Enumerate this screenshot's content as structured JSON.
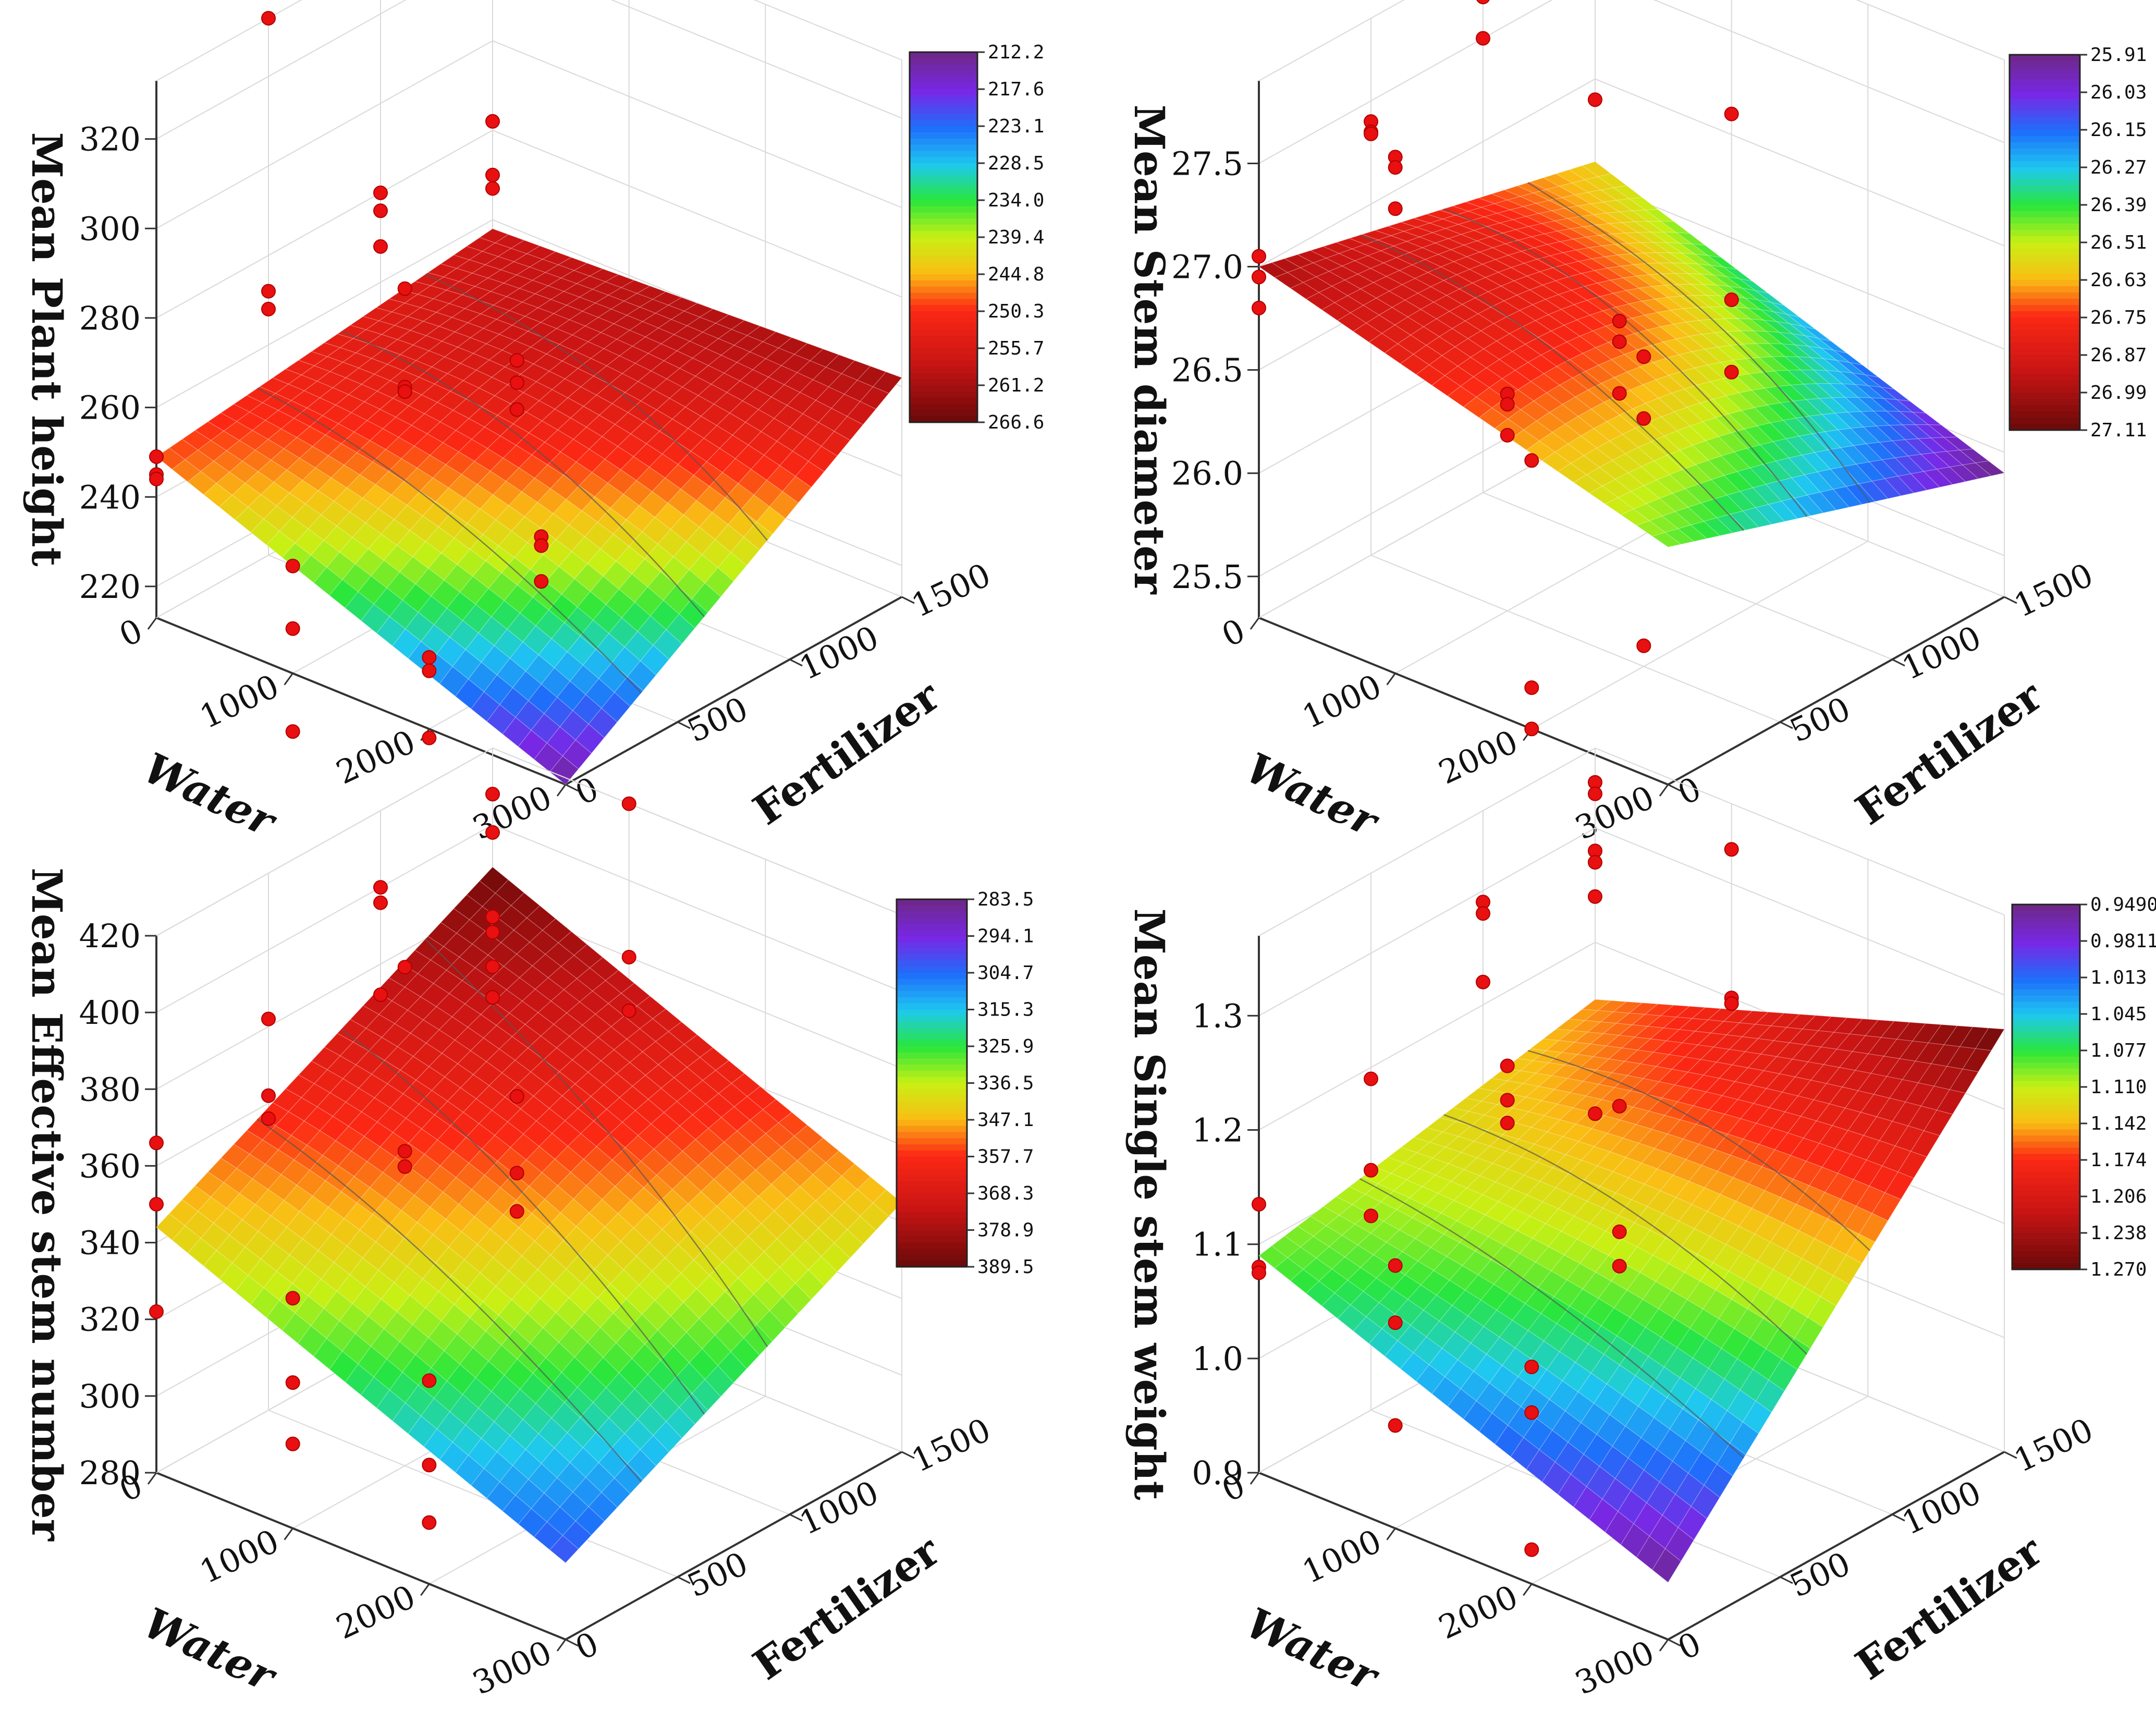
{
  "chart_data": [
    {
      "type": "surface3d",
      "panel": "top-left",
      "zlabel": "Mean Plant height",
      "xlabel": "Water",
      "ylabel": "Fertilizer",
      "x_ticks": [
        "0",
        "1000",
        "2000",
        "3000"
      ],
      "y_ticks": [
        "0",
        "500",
        "1000",
        "1500"
      ],
      "z_ticks": [
        "220",
        "240",
        "260",
        "280",
        "300",
        "320"
      ],
      "xlim": [
        0,
        3000
      ],
      "ylim": [
        0,
        1500
      ],
      "zlim": [
        213,
        333
      ],
      "surface": {
        "corners": {
          "x0y0": 249,
          "x1y0": 213,
          "x0y1": 258,
          "x1y1": 262
        },
        "center": 252
      },
      "colorbar": {
        "labels": [
          "212.2",
          "217.6",
          "223.1",
          "228.5",
          "234.0",
          "239.4",
          "244.8",
          "250.3",
          "255.7",
          "261.2",
          "266.6"
        ],
        "min": 212.2,
        "max": 266.6
      },
      "points": [
        {
          "x": 0,
          "y": 0,
          "z": 249
        },
        {
          "x": 0,
          "y": 0,
          "z": 245
        },
        {
          "x": 0,
          "y": 0,
          "z": 244
        },
        {
          "x": 1000,
          "y": 0,
          "z": 237
        },
        {
          "x": 1000,
          "y": 0,
          "z": 223
        },
        {
          "x": 1000,
          "y": 0,
          "z": 200
        },
        {
          "x": 2000,
          "y": 0,
          "z": 229
        },
        {
          "x": 2000,
          "y": 0,
          "z": 226
        },
        {
          "x": 2000,
          "y": 0,
          "z": 211
        },
        {
          "x": 0,
          "y": 500,
          "z": 272
        },
        {
          "x": 0,
          "y": 500,
          "z": 268
        },
        {
          "x": 0,
          "y": 500,
          "z": 333
        },
        {
          "x": 1000,
          "y": 500,
          "z": 285
        },
        {
          "x": 1000,
          "y": 500,
          "z": 263
        },
        {
          "x": 1000,
          "y": 500,
          "z": 262
        },
        {
          "x": 2000,
          "y": 500,
          "z": 242
        },
        {
          "x": 2000,
          "y": 500,
          "z": 240
        },
        {
          "x": 2000,
          "y": 500,
          "z": 232
        },
        {
          "x": 0,
          "y": 1000,
          "z": 280
        },
        {
          "x": 0,
          "y": 1000,
          "z": 276
        },
        {
          "x": 0,
          "y": 1000,
          "z": 268
        },
        {
          "x": 1000,
          "y": 1000,
          "z": 255
        },
        {
          "x": 1000,
          "y": 1000,
          "z": 250
        },
        {
          "x": 1000,
          "y": 1000,
          "z": 244
        },
        {
          "x": 0,
          "y": 1500,
          "z": 282
        },
        {
          "x": 0,
          "y": 1500,
          "z": 270
        },
        {
          "x": 0,
          "y": 1500,
          "z": 267
        }
      ]
    },
    {
      "type": "surface3d",
      "panel": "top-right",
      "zlabel": "Mean Stem diameter",
      "xlabel": "Water",
      "ylabel": "Fertilizer",
      "x_ticks": [
        "0",
        "1000",
        "2000",
        "3000"
      ],
      "y_ticks": [
        "0",
        "500",
        "1000",
        "1500"
      ],
      "z_ticks": [
        "25.5",
        "26.0",
        "26.5",
        "27.0",
        "27.5"
      ],
      "xlim": [
        0,
        3000
      ],
      "ylim": [
        0,
        1500
      ],
      "zlim": [
        25.3,
        27.9
      ],
      "surface": {
        "corners": {
          "x0y0": 27.0,
          "x1y0": 26.45,
          "x0y1": 26.6,
          "x1y1": 25.9
        },
        "center": 26.7
      },
      "colorbar": {
        "labels": [
          "25.91",
          "26.03",
          "26.15",
          "26.27",
          "26.39",
          "26.51",
          "26.63",
          "26.75",
          "26.87",
          "26.99",
          "27.11"
        ],
        "min": 25.91,
        "max": 27.11
      },
      "points": [
        {
          "x": 0,
          "y": 0,
          "z": 27.05
        },
        {
          "x": 0,
          "y": 0,
          "z": 26.95
        },
        {
          "x": 0,
          "y": 0,
          "z": 26.8
        },
        {
          "x": 1000,
          "y": 0,
          "z": 27.8
        },
        {
          "x": 1000,
          "y": 0,
          "z": 27.75
        },
        {
          "x": 1000,
          "y": 0,
          "z": 27.55
        },
        {
          "x": 2000,
          "y": 0,
          "z": 26.6
        },
        {
          "x": 2000,
          "y": 0,
          "z": 25.5
        },
        {
          "x": 2000,
          "y": 0,
          "z": 25.3
        },
        {
          "x": 0,
          "y": 500,
          "z": 27.4
        },
        {
          "x": 0,
          "y": 500,
          "z": 27.35
        },
        {
          "x": 0,
          "y": 500,
          "z": 27.34
        },
        {
          "x": 1000,
          "y": 500,
          "z": 26.35
        },
        {
          "x": 1000,
          "y": 500,
          "z": 26.3
        },
        {
          "x": 1000,
          "y": 500,
          "z": 26.15
        },
        {
          "x": 2000,
          "y": 500,
          "z": 26.8
        },
        {
          "x": 2000,
          "y": 500,
          "z": 26.5
        },
        {
          "x": 2000,
          "y": 500,
          "z": 25.4
        },
        {
          "x": 0,
          "y": 1000,
          "z": 27.9
        },
        {
          "x": 0,
          "y": 1000,
          "z": 27.7
        },
        {
          "x": 0,
          "y": 1000,
          "z": 27.5
        },
        {
          "x": 1000,
          "y": 1000,
          "z": 26.4
        },
        {
          "x": 1000,
          "y": 1000,
          "z": 26.3
        },
        {
          "x": 1000,
          "y": 1000,
          "z": 26.05
        },
        {
          "x": 0,
          "y": 1500,
          "z": 27.65
        },
        {
          "x": 0,
          "y": 1500,
          "z": 27.6
        },
        {
          "x": 0,
          "y": 1500,
          "z": 26.9
        },
        {
          "x": 1000,
          "y": 1500,
          "z": 27.1
        },
        {
          "x": 1000,
          "y": 1500,
          "z": 26.2
        },
        {
          "x": 1000,
          "y": 1500,
          "z": 25.85
        }
      ]
    },
    {
      "type": "surface3d",
      "panel": "bottom-left",
      "zlabel": "Mean Effective stem number",
      "xlabel": "Water",
      "ylabel": "Fertilizer",
      "x_ticks": [
        "0",
        "1000",
        "2000",
        "3000"
      ],
      "y_ticks": [
        "0",
        "500",
        "1000",
        "1500"
      ],
      "z_ticks": [
        "280",
        "300",
        "320",
        "340",
        "360",
        "380",
        "400",
        "420"
      ],
      "xlim": [
        0,
        3000
      ],
      "ylim": [
        0,
        1500
      ],
      "zlim": [
        280,
        420
      ],
      "surface": {
        "corners": {
          "x0y0": 344,
          "x1y0": 300,
          "x0y1": 389,
          "x1y1": 345
        },
        "center": 352
      },
      "colorbar": {
        "labels": [
          "283.5",
          "294.1",
          "304.7",
          "315.3",
          "325.9",
          "336.5",
          "347.1",
          "357.7",
          "368.3",
          "378.9",
          "389.5"
        ],
        "min": 283.5,
        "max": 389.5
      },
      "points": [
        {
          "x": 0,
          "y": 0,
          "z": 366
        },
        {
          "x": 0,
          "y": 0,
          "z": 350
        },
        {
          "x": 0,
          "y": 0,
          "z": 322
        },
        {
          "x": 1000,
          "y": 0,
          "z": 340
        },
        {
          "x": 1000,
          "y": 0,
          "z": 318
        },
        {
          "x": 1000,
          "y": 0,
          "z": 302
        },
        {
          "x": 2000,
          "y": 0,
          "z": 333
        },
        {
          "x": 2000,
          "y": 0,
          "z": 311
        },
        {
          "x": 2000,
          "y": 0,
          "z": 296
        },
        {
          "x": 0,
          "y": 500,
          "z": 382
        },
        {
          "x": 0,
          "y": 500,
          "z": 362
        },
        {
          "x": 0,
          "y": 500,
          "z": 356
        },
        {
          "x": 1000,
          "y": 500,
          "z": 362
        },
        {
          "x": 1000,
          "y": 500,
          "z": 358
        },
        {
          "x": 1000,
          "y": 500,
          "z": 410
        },
        {
          "x": 0,
          "y": 1000,
          "z": 400
        },
        {
          "x": 0,
          "y": 1000,
          "z": 396
        },
        {
          "x": 0,
          "y": 1000,
          "z": 372
        },
        {
          "x": 1000,
          "y": 1000,
          "z": 360
        },
        {
          "x": 1000,
          "y": 1000,
          "z": 340
        },
        {
          "x": 1000,
          "y": 1000,
          "z": 330
        },
        {
          "x": 0,
          "y": 1500,
          "z": 408
        },
        {
          "x": 0,
          "y": 1500,
          "z": 398
        },
        {
          "x": 0,
          "y": 1500,
          "z": 376
        },
        {
          "x": 0,
          "y": 1500,
          "z": 372
        },
        {
          "x": 0,
          "y": 1500,
          "z": 363
        },
        {
          "x": 0,
          "y": 1500,
          "z": 355
        },
        {
          "x": 1000,
          "y": 1500,
          "z": 420
        },
        {
          "x": 1000,
          "y": 1500,
          "z": 380
        },
        {
          "x": 1000,
          "y": 1500,
          "z": 366
        }
      ]
    },
    {
      "type": "surface3d",
      "panel": "bottom-right",
      "zlabel": "Mean Single stem weight",
      "xlabel": "Water",
      "ylabel": "Fertilizer",
      "x_ticks": [
        "0",
        "1000",
        "2000",
        "3000"
      ],
      "y_ticks": [
        "0",
        "500",
        "1000",
        "1500"
      ],
      "z_ticks": [
        "0.9",
        "1.0",
        "1.1",
        "1.2",
        "1.3"
      ],
      "xlim": [
        0,
        3000
      ],
      "ylim": [
        0,
        1500
      ],
      "zlim": [
        0.9,
        1.37
      ],
      "surface": {
        "corners": {
          "x0y0": 1.09,
          "x1y0": 0.95,
          "x0y1": 1.15,
          "x1y1": 1.27
        },
        "center": 1.13
      },
      "colorbar": {
        "labels": [
          "0.9490",
          "0.9811",
          "1.013",
          "1.045",
          "1.077",
          "1.110",
          "1.142",
          "1.174",
          "1.206",
          "1.238",
          "1.270"
        ],
        "min": 0.949,
        "max": 1.27
      },
      "points": [
        {
          "x": 0,
          "y": 0,
          "z": 1.135
        },
        {
          "x": 0,
          "y": 0,
          "z": 1.08
        },
        {
          "x": 0,
          "y": 0,
          "z": 1.075
        },
        {
          "x": 1000,
          "y": 0,
          "z": 1.13
        },
        {
          "x": 1000,
          "y": 0,
          "z": 1.08
        },
        {
          "x": 1000,
          "y": 0,
          "z": 0.99
        },
        {
          "x": 2000,
          "y": 0,
          "z": 1.09
        },
        {
          "x": 2000,
          "y": 0,
          "z": 1.05
        },
        {
          "x": 2000,
          "y": 0,
          "z": 0.93
        },
        {
          "x": 0,
          "y": 500,
          "z": 1.19
        },
        {
          "x": 0,
          "y": 500,
          "z": 1.11
        },
        {
          "x": 0,
          "y": 500,
          "z": 1.07
        },
        {
          "x": 1000,
          "y": 500,
          "z": 1.25
        },
        {
          "x": 1000,
          "y": 500,
          "z": 1.22
        },
        {
          "x": 1000,
          "y": 500,
          "z": 1.2
        },
        {
          "x": 0,
          "y": 1000,
          "z": 1.29
        },
        {
          "x": 0,
          "y": 1000,
          "z": 1.28
        },
        {
          "x": 0,
          "y": 1000,
          "z": 1.22
        },
        {
          "x": 1000,
          "y": 1000,
          "z": 1.16
        },
        {
          "x": 1000,
          "y": 1000,
          "z": 1.05
        },
        {
          "x": 1000,
          "y": 1000,
          "z": 1.02
        },
        {
          "x": 0,
          "y": 1500,
          "z": 1.34
        },
        {
          "x": 0,
          "y": 1500,
          "z": 1.33
        },
        {
          "x": 0,
          "y": 1500,
          "z": 1.28
        },
        {
          "x": 0,
          "y": 1500,
          "z": 1.27
        },
        {
          "x": 0,
          "y": 1500,
          "z": 1.24
        },
        {
          "x": 0,
          "y": 1500,
          "z": 1.05
        },
        {
          "x": 1000,
          "y": 1500,
          "z": 1.33
        },
        {
          "x": 1000,
          "y": 1500,
          "z": 1.2
        },
        {
          "x": 1000,
          "y": 1500,
          "z": 1.195
        }
      ]
    }
  ]
}
